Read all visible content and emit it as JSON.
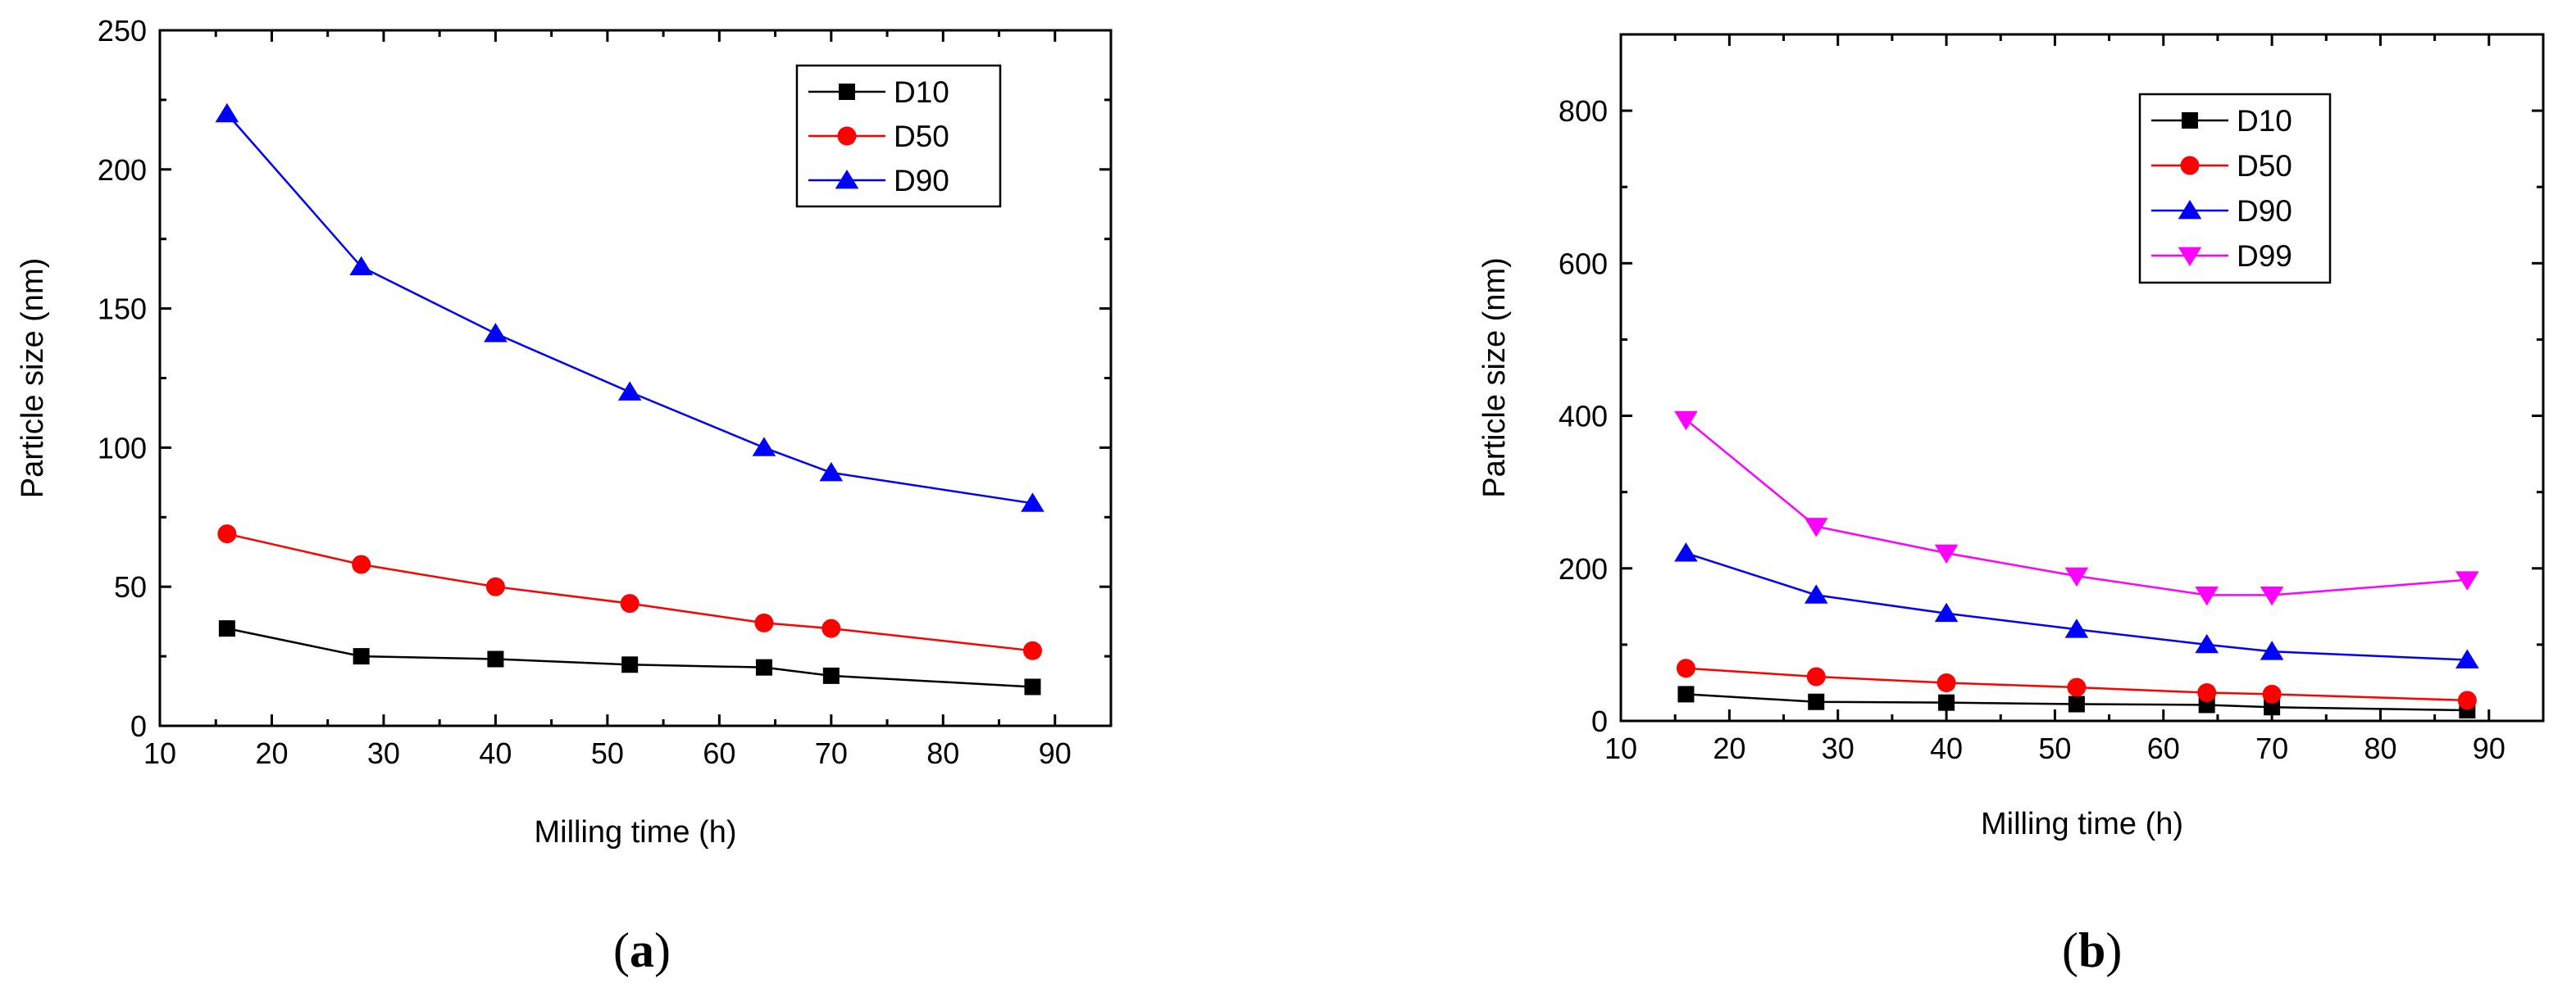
{
  "chart_data": [
    {
      "id": "a",
      "type": "line",
      "caption_paren_open": "(",
      "caption_letter": "a",
      "caption_paren_close": ")",
      "xlabel": "Milling time (h)",
      "ylabel": "Particle size (nm)",
      "xlim": [
        10,
        95
      ],
      "ylim": [
        0,
        250
      ],
      "xticks": [
        10,
        20,
        30,
        40,
        50,
        60,
        70,
        80,
        90
      ],
      "yticks": [
        0,
        50,
        100,
        150,
        200,
        250
      ],
      "x": [
        16,
        28,
        40,
        52,
        64,
        70,
        88
      ],
      "legend_position": "top-right",
      "series": [
        {
          "name": "D10",
          "color": "#000000",
          "marker": "square",
          "values": [
            35,
            25,
            24,
            22,
            21,
            18,
            14
          ]
        },
        {
          "name": "D50",
          "color": "#ff0000",
          "marker": "circle",
          "values": [
            69,
            58,
            50,
            44,
            37,
            35,
            27
          ]
        },
        {
          "name": "D90",
          "color": "#0000ff",
          "marker": "triangle-up",
          "values": [
            220,
            165,
            141,
            120,
            100,
            91,
            80
          ]
        }
      ]
    },
    {
      "id": "b",
      "type": "line",
      "caption_paren_open": "(",
      "caption_letter": "b",
      "caption_paren_close": ")",
      "xlabel": "Milling time (h)",
      "ylabel": "Particle size (nm)",
      "xlim": [
        10,
        95
      ],
      "ylim": [
        0,
        900
      ],
      "xticks": [
        10,
        20,
        30,
        40,
        50,
        60,
        70,
        80,
        90
      ],
      "yticks": [
        0,
        200,
        400,
        600,
        800
      ],
      "x": [
        16,
        28,
        40,
        52,
        64,
        70,
        88
      ],
      "legend_position": "top-center",
      "series": [
        {
          "name": "D10",
          "color": "#000000",
          "marker": "square",
          "values": [
            35,
            25,
            24,
            22,
            21,
            18,
            14
          ]
        },
        {
          "name": "D50",
          "color": "#ff0000",
          "marker": "circle",
          "values": [
            69,
            58,
            50,
            44,
            37,
            35,
            27
          ]
        },
        {
          "name": "D90",
          "color": "#0000ff",
          "marker": "triangle-up",
          "values": [
            220,
            165,
            141,
            120,
            100,
            91,
            80
          ]
        },
        {
          "name": "D99",
          "color": "#ff00ff",
          "marker": "triangle-down",
          "values": [
            395,
            255,
            220,
            190,
            165,
            165,
            185
          ]
        }
      ]
    }
  ]
}
